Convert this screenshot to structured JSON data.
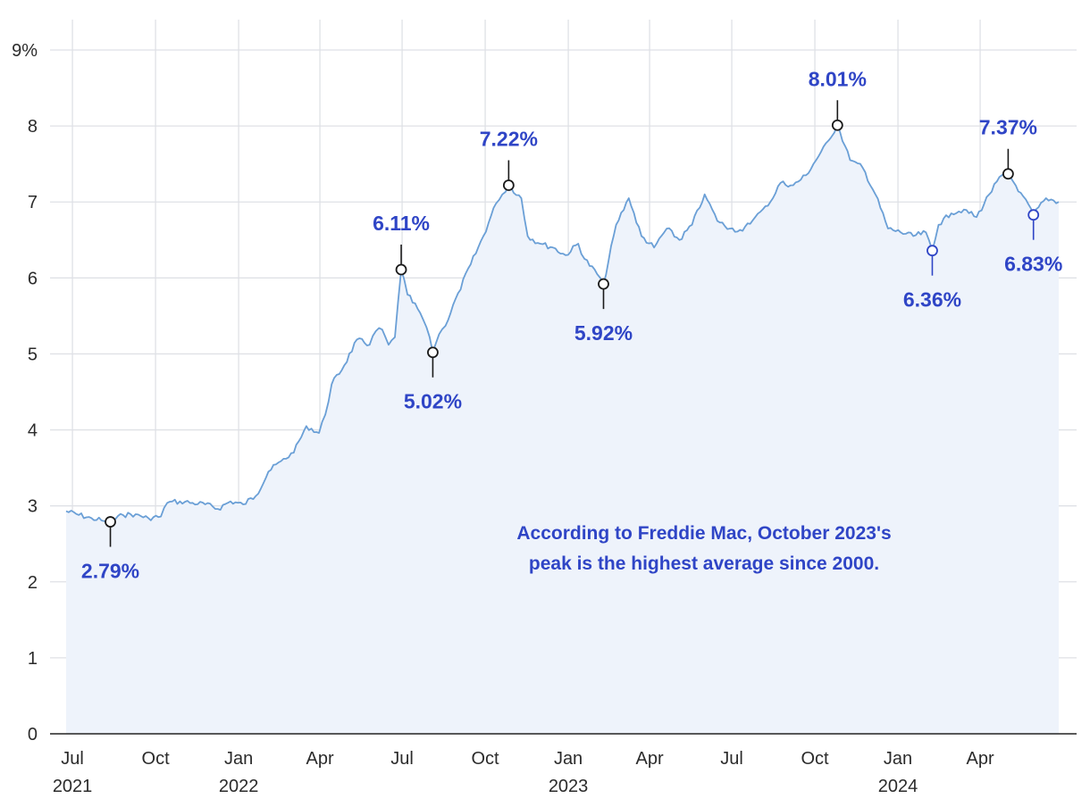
{
  "chart_data": {
    "type": "area",
    "title": "",
    "xlabel": "",
    "ylabel": "",
    "x_range": [
      "2021-06-24",
      "2024-06-27"
    ],
    "ylim": [
      0,
      9
    ],
    "grid": true,
    "legend": "none",
    "y_ticks": [
      {
        "value": 0,
        "label": "0"
      },
      {
        "value": 1,
        "label": "1"
      },
      {
        "value": 2,
        "label": "2"
      },
      {
        "value": 3,
        "label": "3"
      },
      {
        "value": 4,
        "label": "4"
      },
      {
        "value": 5,
        "label": "5"
      },
      {
        "value": 6,
        "label": "6"
      },
      {
        "value": 7,
        "label": "7"
      },
      {
        "value": 8,
        "label": "8"
      },
      {
        "value": 9,
        "label": "9%"
      }
    ],
    "x_ticks": [
      {
        "date": "2021-07-01",
        "label": "Jul",
        "year": "2021"
      },
      {
        "date": "2021-10-01",
        "label": "Oct",
        "year": ""
      },
      {
        "date": "2022-01-01",
        "label": "Jan",
        "year": "2022"
      },
      {
        "date": "2022-04-01",
        "label": "Apr",
        "year": ""
      },
      {
        "date": "2022-07-01",
        "label": "Jul",
        "year": ""
      },
      {
        "date": "2022-10-01",
        "label": "Oct",
        "year": ""
      },
      {
        "date": "2023-01-01",
        "label": "Jan",
        "year": "2023"
      },
      {
        "date": "2023-04-01",
        "label": "Apr",
        "year": ""
      },
      {
        "date": "2023-07-01",
        "label": "Jul",
        "year": ""
      },
      {
        "date": "2023-10-01",
        "label": "Oct",
        "year": ""
      },
      {
        "date": "2024-01-01",
        "label": "Jan",
        "year": "2024"
      },
      {
        "date": "2024-04-01",
        "label": "Apr",
        "year": ""
      }
    ],
    "series": [
      {
        "color": "#6a9fd6",
        "fill": "#eef3fb",
        "points": [
          [
            "2021-06-24",
            2.93
          ],
          [
            "2021-07-08",
            2.88
          ],
          [
            "2021-07-22",
            2.84
          ],
          [
            "2021-08-05",
            2.8
          ],
          [
            "2021-08-12",
            2.79
          ],
          [
            "2021-08-26",
            2.88
          ],
          [
            "2021-09-09",
            2.89
          ],
          [
            "2021-09-23",
            2.84
          ],
          [
            "2021-10-07",
            2.86
          ],
          [
            "2021-10-14",
            3.04
          ],
          [
            "2021-10-28",
            3.06
          ],
          [
            "2021-11-11",
            3.04
          ],
          [
            "2021-11-25",
            3.02
          ],
          [
            "2021-12-09",
            2.96
          ],
          [
            "2021-12-23",
            3.06
          ],
          [
            "2022-01-06",
            3.02
          ],
          [
            "2022-01-20",
            3.13
          ],
          [
            "2022-02-03",
            3.45
          ],
          [
            "2022-02-17",
            3.59
          ],
          [
            "2022-03-03",
            3.7
          ],
          [
            "2022-03-17",
            4.05
          ],
          [
            "2022-03-31",
            3.96
          ],
          [
            "2022-04-07",
            4.2
          ],
          [
            "2022-04-14",
            4.6
          ],
          [
            "2022-04-28",
            4.85
          ],
          [
            "2022-05-12",
            5.19
          ],
          [
            "2022-05-26",
            5.12
          ],
          [
            "2022-06-02",
            5.3
          ],
          [
            "2022-06-09",
            5.32
          ],
          [
            "2022-06-16",
            5.12
          ],
          [
            "2022-06-23",
            5.22
          ],
          [
            "2022-06-30",
            6.11
          ],
          [
            "2022-07-07",
            5.78
          ],
          [
            "2022-07-21",
            5.54
          ],
          [
            "2022-07-28",
            5.35
          ],
          [
            "2022-08-04",
            5.02
          ],
          [
            "2022-08-11",
            5.26
          ],
          [
            "2022-08-18",
            5.37
          ],
          [
            "2022-09-01",
            5.8
          ],
          [
            "2022-09-15",
            6.18
          ],
          [
            "2022-09-29",
            6.55
          ],
          [
            "2022-10-13",
            6.98
          ],
          [
            "2022-10-20",
            7.1
          ],
          [
            "2022-10-27",
            7.22
          ],
          [
            "2022-11-10",
            7.05
          ],
          [
            "2022-11-17",
            6.55
          ],
          [
            "2022-12-01",
            6.45
          ],
          [
            "2022-12-15",
            6.4
          ],
          [
            "2022-12-29",
            6.3
          ],
          [
            "2023-01-12",
            6.45
          ],
          [
            "2023-01-19",
            6.25
          ],
          [
            "2023-02-02",
            6.05
          ],
          [
            "2023-02-09",
            5.92
          ],
          [
            "2023-02-23",
            6.7
          ],
          [
            "2023-03-09",
            7.05
          ],
          [
            "2023-03-23",
            6.55
          ],
          [
            "2023-04-06",
            6.4
          ],
          [
            "2023-04-20",
            6.65
          ],
          [
            "2023-05-04",
            6.5
          ],
          [
            "2023-05-18",
            6.7
          ],
          [
            "2023-06-01",
            7.1
          ],
          [
            "2023-06-15",
            6.75
          ],
          [
            "2023-06-29",
            6.65
          ],
          [
            "2023-07-13",
            6.62
          ],
          [
            "2023-07-27",
            6.8
          ],
          [
            "2023-08-10",
            6.95
          ],
          [
            "2023-08-24",
            7.25
          ],
          [
            "2023-09-07",
            7.22
          ],
          [
            "2023-09-21",
            7.35
          ],
          [
            "2023-10-05",
            7.6
          ],
          [
            "2023-10-19",
            7.85
          ],
          [
            "2023-10-26",
            8.01
          ],
          [
            "2023-11-09",
            7.55
          ],
          [
            "2023-11-23",
            7.45
          ],
          [
            "2023-12-07",
            7.1
          ],
          [
            "2023-12-21",
            6.65
          ],
          [
            "2024-01-04",
            6.6
          ],
          [
            "2024-01-18",
            6.55
          ],
          [
            "2024-02-01",
            6.6
          ],
          [
            "2024-02-08",
            6.36
          ],
          [
            "2024-02-15",
            6.7
          ],
          [
            "2024-02-29",
            6.85
          ],
          [
            "2024-03-14",
            6.9
          ],
          [
            "2024-03-28",
            6.8
          ],
          [
            "2024-04-11",
            7.1
          ],
          [
            "2024-04-25",
            7.35
          ],
          [
            "2024-05-02",
            7.37
          ],
          [
            "2024-05-16",
            7.12
          ],
          [
            "2024-05-30",
            6.83
          ],
          [
            "2024-06-13",
            7.05
          ],
          [
            "2024-06-27",
            7.0
          ]
        ]
      }
    ],
    "annotations": [
      {
        "date": "2021-08-12",
        "value": 2.79,
        "label": "2.79%",
        "position": "below",
        "marker_color": "#1a1a1a"
      },
      {
        "date": "2022-06-30",
        "value": 6.11,
        "label": "6.11%",
        "position": "above",
        "marker_color": "#1a1a1a"
      },
      {
        "date": "2022-08-04",
        "value": 5.02,
        "label": "5.02%",
        "position": "below",
        "marker_color": "#1a1a1a"
      },
      {
        "date": "2022-10-27",
        "value": 7.22,
        "label": "7.22%",
        "position": "above",
        "marker_color": "#1a1a1a"
      },
      {
        "date": "2023-02-09",
        "value": 5.92,
        "label": "5.92%",
        "position": "below",
        "marker_color": "#1a1a1a"
      },
      {
        "date": "2023-10-26",
        "value": 8.01,
        "label": "8.01%",
        "position": "above",
        "marker_color": "#1a1a1a"
      },
      {
        "date": "2024-02-08",
        "value": 6.36,
        "label": "6.36%",
        "position": "below",
        "marker_color": "#2f45c6"
      },
      {
        "date": "2024-05-02",
        "value": 7.37,
        "label": "7.37%",
        "position": "above",
        "marker_color": "#1a1a1a"
      },
      {
        "date": "2024-05-30",
        "value": 6.83,
        "label": "6.83%",
        "position": "below",
        "marker_color": "#2f45c6"
      }
    ],
    "note": {
      "lines": [
        "According to Freddie Mac, October 2023's",
        "peak is the highest average since 2000."
      ],
      "color": "#2f45c6"
    },
    "colors": {
      "label": "#2f45c6",
      "line": "#6a9fd6",
      "area": "#eef3fb"
    }
  }
}
